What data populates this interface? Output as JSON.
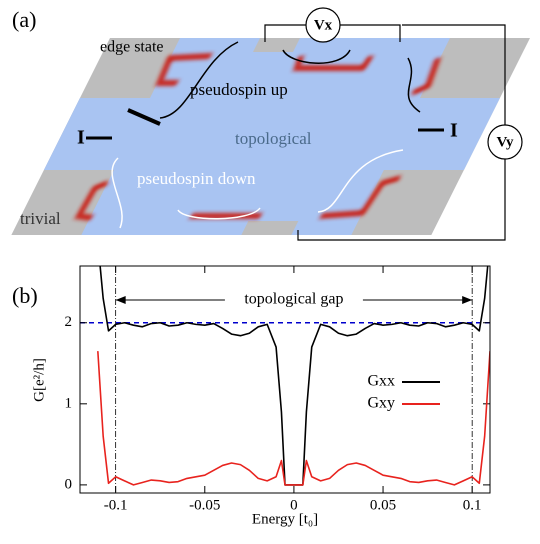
{
  "diagram": {
    "panel_label": "(a)",
    "edge_state": "edge state",
    "pseudospin_up": "pseudospin up",
    "topological": "topological",
    "pseudospin_down": "pseudospin down",
    "trivial": "trivial",
    "current_left": "I",
    "current_right": "I",
    "voltage_x": "Vx",
    "voltage_y": "Vy"
  },
  "chart_data": {
    "type": "line",
    "panel_label": "(b)",
    "x_label": "Energy [t₀]",
    "y_label": "G[e²/h]",
    "xlim": [
      -0.12,
      0.11
    ],
    "ylim": [
      -0.1,
      2.7
    ],
    "xticks": [
      -0.1,
      -0.05,
      0,
      0.05,
      0.1
    ],
    "yticks": [
      0,
      1,
      2
    ],
    "reference_line": {
      "value": 2,
      "color": "#0000cc"
    },
    "gap": {
      "text": "topological gap",
      "from": -0.1,
      "to": 0.1
    },
    "legend": "center-right",
    "x": [
      -0.11,
      -0.107,
      -0.104,
      -0.1,
      -0.095,
      -0.09,
      -0.085,
      -0.08,
      -0.075,
      -0.07,
      -0.065,
      -0.06,
      -0.055,
      -0.05,
      -0.045,
      -0.04,
      -0.035,
      -0.03,
      -0.025,
      -0.02,
      -0.015,
      -0.01,
      -0.007,
      -0.005,
      0.005,
      0.007,
      0.01,
      0.015,
      0.02,
      0.025,
      0.03,
      0.035,
      0.04,
      0.045,
      0.05,
      0.055,
      0.06,
      0.065,
      0.07,
      0.075,
      0.08,
      0.085,
      0.09,
      0.095,
      0.1,
      0.104,
      0.107,
      0.11
    ],
    "series": [
      {
        "name": "Gxx",
        "color": "#000000",
        "values": [
          3.0,
          2.3,
          1.9,
          1.98,
          2.0,
          1.97,
          1.95,
          1.99,
          2.0,
          1.96,
          1.97,
          2.0,
          1.98,
          1.97,
          1.99,
          1.93,
          1.86,
          1.84,
          1.87,
          1.95,
          1.98,
          1.7,
          0.9,
          0,
          0,
          0.9,
          1.7,
          1.98,
          1.95,
          1.87,
          1.84,
          1.86,
          1.93,
          1.99,
          1.97,
          1.98,
          2.0,
          1.97,
          1.96,
          2.0,
          1.99,
          1.95,
          1.97,
          2.0,
          1.98,
          1.9,
          2.3,
          3.0
        ]
      },
      {
        "name": "Gxy",
        "color": "#e8231e",
        "values": [
          1.65,
          0.6,
          0.02,
          0.1,
          0.05,
          0.0,
          0.03,
          0.06,
          0.05,
          0.03,
          0.04,
          0.08,
          0.1,
          0.12,
          0.18,
          0.24,
          0.27,
          0.25,
          0.18,
          0.08,
          0.05,
          0.1,
          0.3,
          0,
          0,
          0.3,
          0.1,
          0.05,
          0.08,
          0.18,
          0.25,
          0.27,
          0.24,
          0.18,
          0.12,
          0.1,
          0.08,
          0.04,
          0.03,
          0.05,
          0.06,
          0.03,
          0.0,
          0.05,
          0.1,
          0.02,
          0.6,
          1.65
        ]
      }
    ]
  }
}
